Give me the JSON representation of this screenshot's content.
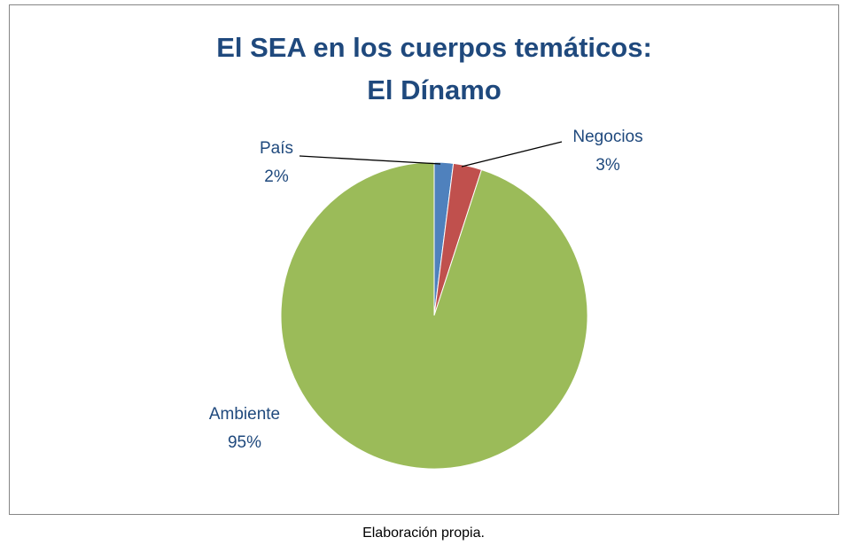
{
  "chart_data": {
    "type": "pie",
    "title": [
      "El SEA en los cuerpos temáticos:",
      "El Dínamo"
    ],
    "categories": [
      "País",
      "Negocios",
      "Ambiente"
    ],
    "values": [
      2,
      3,
      95
    ],
    "value_labels": [
      "2%",
      "3%",
      "95%"
    ],
    "colors": [
      "#4f81bd",
      "#c0504d",
      "#9bbb59"
    ]
  },
  "caption": "Elaboración propia."
}
